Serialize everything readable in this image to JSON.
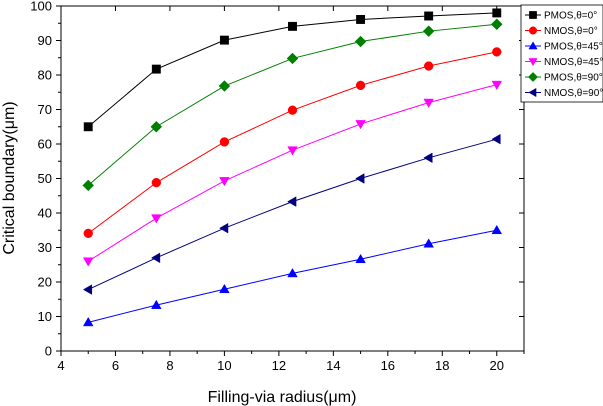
{
  "chart_data": {
    "type": "line",
    "xlabel": "Filling-via radius(μm)",
    "ylabel": "Critical boundary(μm)",
    "xlim": [
      4,
      21
    ],
    "ylim": [
      0,
      100
    ],
    "x_ticks": [
      "4",
      "6",
      "8",
      "10",
      "12",
      "14",
      "16",
      "18",
      "20"
    ],
    "y_ticks": [
      "0",
      "10",
      "20",
      "30",
      "40",
      "50",
      "60",
      "70",
      "80",
      "90",
      "100"
    ],
    "legend_position": "top-right",
    "x": [
      5,
      7.5,
      10,
      12.5,
      15,
      17.5,
      20
    ],
    "series": [
      {
        "name": "PMOS,θ=0°",
        "color": "#000000",
        "marker": "square",
        "values": [
          65,
          81.7,
          90.1,
          94.1,
          96.1,
          97.1,
          98
        ]
      },
      {
        "name": "NMOS,θ=0°",
        "color": "#ff0000",
        "marker": "circle",
        "values": [
          34.1,
          48.8,
          60.6,
          69.8,
          77,
          82.6,
          86.7
        ]
      },
      {
        "name": "PMOS,θ=45°",
        "color": "#0000ff",
        "marker": "triangle-up",
        "values": [
          8.3,
          13.3,
          17.9,
          22.5,
          26.6,
          31.1,
          35
        ]
      },
      {
        "name": "NMOS,θ=45°",
        "color": "#ff00ff",
        "marker": "triangle-down",
        "values": [
          26,
          38.5,
          49.3,
          58.2,
          65.8,
          72,
          77.2
        ]
      },
      {
        "name": "PMOS,θ=90°",
        "color": "#008000",
        "marker": "diamond",
        "values": [
          48,
          65,
          76.8,
          84.8,
          89.7,
          92.7,
          94.7
        ]
      },
      {
        "name": "NMOS,θ=90°",
        "color": "#000080",
        "marker": "triangle-left",
        "values": [
          17.8,
          27,
          35.6,
          43.3,
          50,
          56,
          61.4
        ]
      }
    ]
  }
}
